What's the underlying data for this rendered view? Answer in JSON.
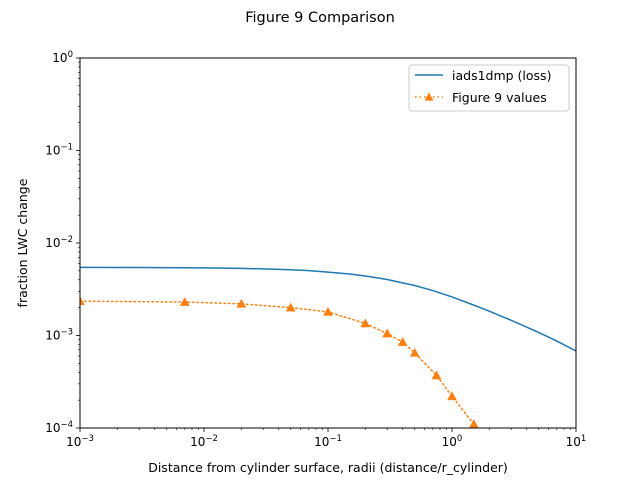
{
  "chart_data": {
    "type": "line",
    "title": "Figure 9 Comparison",
    "xlabel": "Distance from cylinder surface, radii (distance/r_cylinder)",
    "ylabel": "fraction LWC change",
    "xscale": "log",
    "yscale": "log",
    "xlim": [
      0.001,
      10
    ],
    "ylim": [
      0.0001,
      1
    ],
    "grid": false,
    "legend": "top-right",
    "x_ticks": [
      {
        "value": 0.001,
        "base": "10",
        "exp": "−3"
      },
      {
        "value": 0.01,
        "base": "10",
        "exp": "−2"
      },
      {
        "value": 0.1,
        "base": "10",
        "exp": "−1"
      },
      {
        "value": 1,
        "base": "10",
        "exp": "0"
      },
      {
        "value": 10,
        "base": "10",
        "exp": "1"
      }
    ],
    "y_ticks": [
      {
        "value": 0.0001,
        "base": "10",
        "exp": "−4"
      },
      {
        "value": 0.001,
        "base": "10",
        "exp": "−3"
      },
      {
        "value": 0.01,
        "base": "10",
        "exp": "−2"
      },
      {
        "value": 0.1,
        "base": "10",
        "exp": "−1"
      },
      {
        "value": 1,
        "base": "10",
        "exp": "0"
      }
    ],
    "series": [
      {
        "name": "iads1dmp (loss)",
        "color": "#1f77b4",
        "style": "solid",
        "marker": "none",
        "x": [
          0.001,
          0.003,
          0.01,
          0.02,
          0.03,
          0.05,
          0.07,
          0.1,
          0.15,
          0.2,
          0.3,
          0.5,
          0.7,
          1.0,
          1.5,
          2,
          3,
          5,
          7,
          10
        ],
        "y": [
          0.00545,
          0.00543,
          0.00538,
          0.00532,
          0.00525,
          0.00513,
          0.00502,
          0.00484,
          0.00462,
          0.0044,
          0.00403,
          0.00347,
          0.00306,
          0.00261,
          0.00213,
          0.00183,
          0.00146,
          0.00108,
          0.00087,
          0.00068
        ]
      },
      {
        "name": "Figure 9 values",
        "color": "#ff7f0e",
        "style": "dotted",
        "marker": "triangle",
        "x": [
          0.001,
          0.007,
          0.02,
          0.05,
          0.1,
          0.2,
          0.3,
          0.4,
          0.5,
          0.75,
          1.0,
          1.5
        ],
        "y": [
          0.00235,
          0.0023,
          0.0022,
          0.002,
          0.0018,
          0.00135,
          0.00105,
          0.00085,
          0.00065,
          0.00037,
          0.00022,
          0.00011
        ]
      }
    ]
  }
}
